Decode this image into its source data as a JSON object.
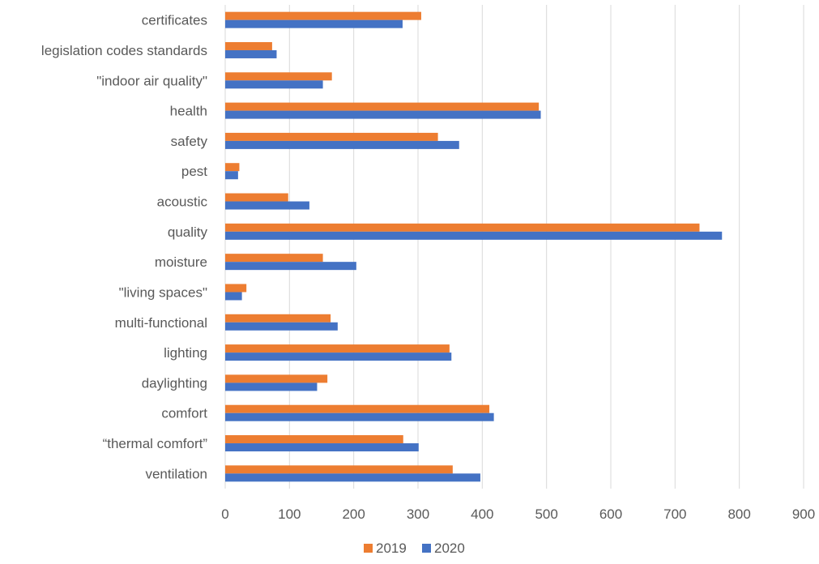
{
  "chart_data": {
    "type": "bar",
    "orientation": "horizontal",
    "title": "",
    "xlabel": "",
    "ylabel": "",
    "categories": [
      "certificates",
      "legislation codes standards",
      "\"indoor air quality\"",
      "health",
      "safety",
      "pest",
      "acoustic",
      "quality",
      "moisture",
      "\"living spaces\"",
      "multi-functional",
      "lighting",
      "daylighting",
      "comfort",
      "“thermal comfort”",
      "ventilation"
    ],
    "series": [
      {
        "name": "2019",
        "color": "#ed7d31",
        "values": [
          305,
          73,
          166,
          488,
          331,
          22,
          98,
          738,
          152,
          33,
          164,
          349,
          159,
          411,
          277,
          354
        ]
      },
      {
        "name": "2020",
        "color": "#4472c4",
        "values": [
          276,
          80,
          152,
          491,
          364,
          20,
          131,
          773,
          204,
          26,
          175,
          352,
          143,
          418,
          301,
          397
        ]
      }
    ],
    "xlim": [
      0,
      900
    ],
    "x_ticks": [
      "0",
      "100",
      "200",
      "300",
      "400",
      "500",
      "600",
      "700",
      "800",
      "900"
    ],
    "grid": true,
    "legend_position": "bottom"
  }
}
